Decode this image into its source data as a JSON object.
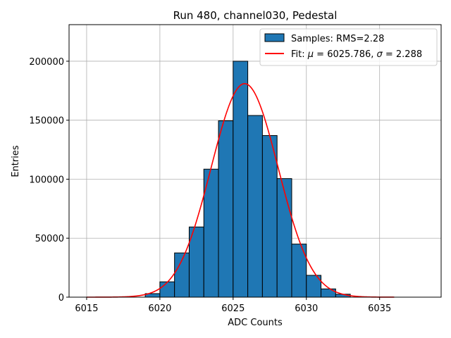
{
  "chart_data": {
    "type": "bar",
    "title": "Run 480, channel030, Pedestal",
    "xlabel": "ADC Counts",
    "ylabel": "Entries",
    "xlim": [
      6013.8,
      6039.2
    ],
    "ylim": [
      0,
      231000
    ],
    "xticks": [
      6015,
      6020,
      6025,
      6030,
      6035
    ],
    "yticks": [
      0,
      50000,
      100000,
      150000,
      200000
    ],
    "grid": true,
    "legend_position": "top-right",
    "histogram": {
      "name": "Samples: RMS=2.28",
      "color": "#1f77b4",
      "bin_width": 1,
      "bins": [
        {
          "x": 6019,
          "y": 3000
        },
        {
          "x": 6020,
          "y": 13000
        },
        {
          "x": 6021,
          "y": 37500
        },
        {
          "x": 6022,
          "y": 59500
        },
        {
          "x": 6023,
          "y": 108500
        },
        {
          "x": 6024,
          "y": 149500
        },
        {
          "x": 6025,
          "y": 200000
        },
        {
          "x": 6026,
          "y": 154000
        },
        {
          "x": 6027,
          "y": 137000
        },
        {
          "x": 6028,
          "y": 100500
        },
        {
          "x": 6029,
          "y": 45000
        },
        {
          "x": 6030,
          "y": 18500
        },
        {
          "x": 6031,
          "y": 7000
        },
        {
          "x": 6032,
          "y": 2500
        }
      ]
    },
    "fit": {
      "name": "Fit: μ = 6025.786, σ = 2.288",
      "name_parts": {
        "prefix": "Fit: ",
        "mu_symbol": "μ",
        "mu_text": " = 6025.786, ",
        "sigma_symbol": "σ",
        "sigma_text": " = 2.288"
      },
      "color": "#ff0000",
      "mu": 6025.786,
      "sigma": 2.288,
      "amplitude": 181000,
      "x_range": [
        6015,
        6036
      ]
    }
  }
}
